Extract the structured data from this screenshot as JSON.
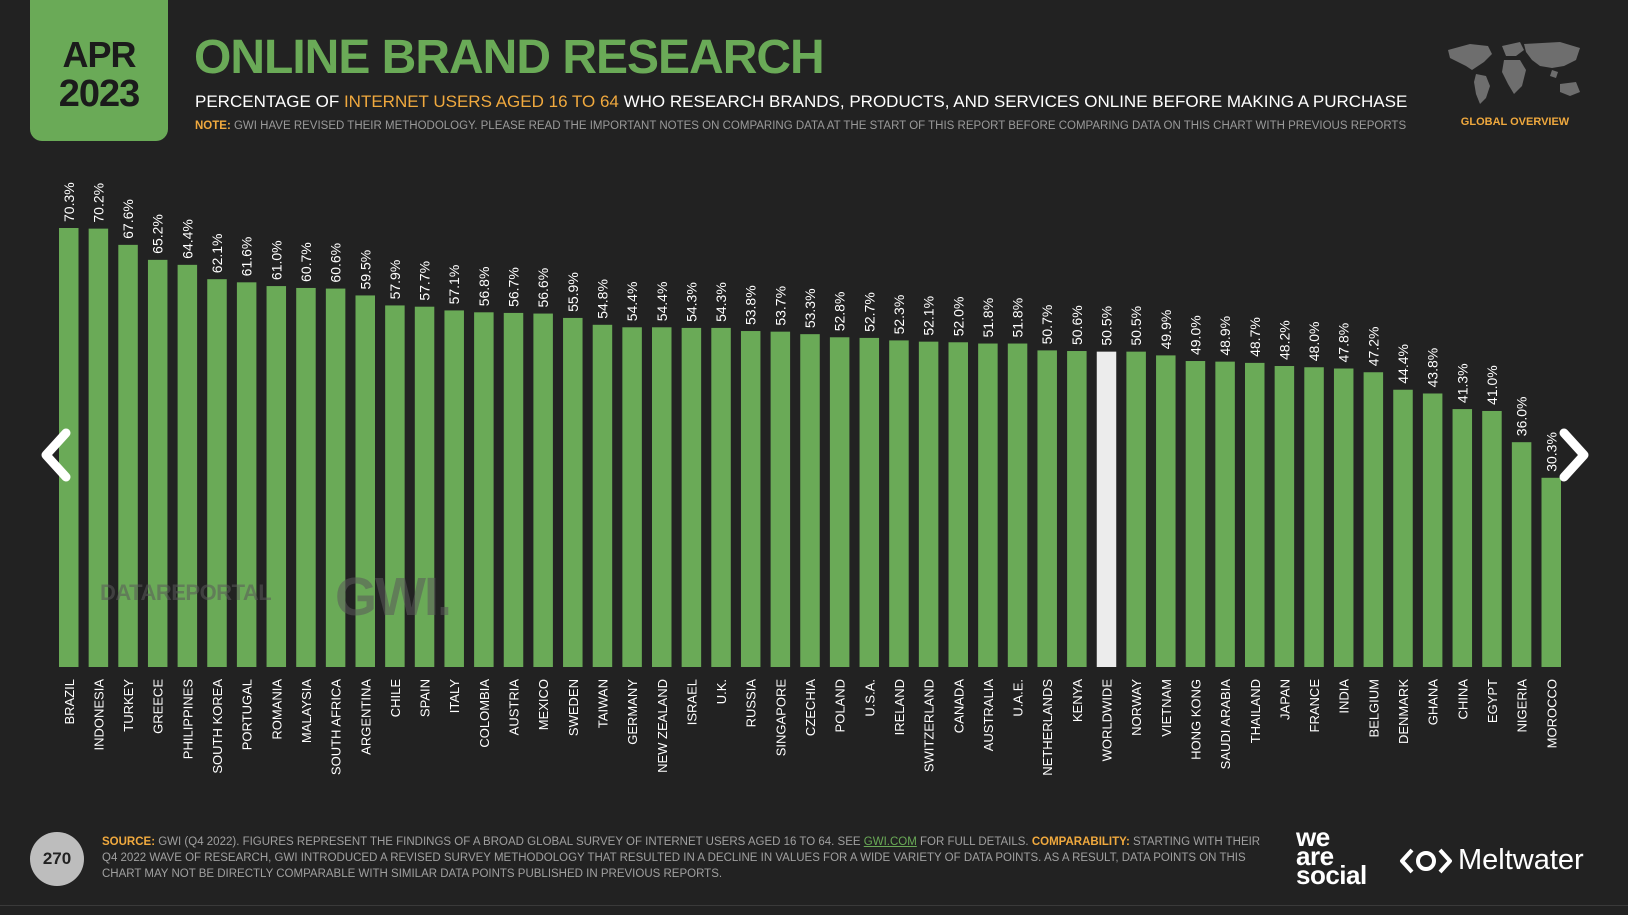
{
  "badge": {
    "month": "APR",
    "year": "2023"
  },
  "header": {
    "title": "ONLINE BRAND RESEARCH",
    "subtitle_pre": "PERCENTAGE OF ",
    "subtitle_highlight": "INTERNET USERS AGED 16 TO 64",
    "subtitle_post": " WHO RESEARCH BRANDS, PRODUCTS, AND SERVICES ONLINE BEFORE MAKING A PURCHASE",
    "note_label": "NOTE:",
    "note_text": " GWI HAVE REVISED THEIR METHODOLOGY. PLEASE READ THE IMPORTANT NOTES ON COMPARING DATA AT THE START OF THIS REPORT BEFORE COMPARING DATA ON THIS CHART WITH PREVIOUS REPORTS"
  },
  "global_overview": {
    "label": "GLOBAL OVERVIEW",
    "icon": "world-map-icon"
  },
  "nav": {
    "prev_icon": "chevron-left-icon",
    "next_icon": "chevron-right-icon"
  },
  "watermarks": {
    "datareportal": "DATAREPORTAL",
    "gwi": "GWI."
  },
  "footer": {
    "page_number": "270",
    "source_label": "SOURCE:",
    "source_text_1": " GWI (Q4 2022). FIGURES REPRESENT THE FINDINGS OF A BROAD GLOBAL SURVEY OF INTERNET USERS AGED 16 TO 64. SEE ",
    "source_link": "GWI.COM",
    "source_text_2": " FOR FULL DETAILS. ",
    "comparability_label": "COMPARABILITY:",
    "comparability_text": " STARTING WITH THEIR Q4 2022 WAVE OF RESEARCH, GWI INTRODUCED A REVISED SURVEY METHODOLOGY THAT RESULTED IN A DECLINE IN VALUES FOR A WIDE VARIETY OF DATA POINTS. AS A RESULT, DATA POINTS ON THIS CHART MAY NOT BE DIRECTLY COMPARABLE WITH SIMILAR DATA POINTS PUBLISHED IN PREVIOUS REPORTS.",
    "logo_wearesocial": [
      "we",
      "are",
      "social"
    ],
    "logo_meltwater": "Meltwater"
  },
  "colors": {
    "bar": "#6aaa57",
    "highlight_bar": "#ececec",
    "accent": "#f0a93e",
    "background": "#222222"
  },
  "chart_data": {
    "type": "bar",
    "title": "ONLINE BRAND RESEARCH",
    "ylim": [
      0,
      72
    ],
    "unit": "%",
    "highlight": "WORLDWIDE",
    "categories": [
      "BRAZIL",
      "INDONESIA",
      "TURKEY",
      "GREECE",
      "PHILIPPINES",
      "SOUTH KOREA",
      "PORTUGAL",
      "ROMANIA",
      "MALAYSIA",
      "SOUTH AFRICA",
      "ARGENTINA",
      "CHILE",
      "SPAIN",
      "ITALY",
      "COLOMBIA",
      "AUSTRIA",
      "MEXICO",
      "SWEDEN",
      "TAIWAN",
      "GERMANY",
      "NEW ZEALAND",
      "ISRAEL",
      "U.K.",
      "RUSSIA",
      "SINGAPORE",
      "CZECHIA",
      "POLAND",
      "U.S.A.",
      "IRELAND",
      "SWITZERLAND",
      "CANADA",
      "AUSTRALIA",
      "U.A.E.",
      "NETHERLANDS",
      "KENYA",
      "WORLDWIDE",
      "NORWAY",
      "VIETNAM",
      "HONG KONG",
      "SAUDI ARABIA",
      "THAILAND",
      "JAPAN",
      "FRANCE",
      "INDIA",
      "BELGIUM",
      "DENMARK",
      "GHANA",
      "CHINA",
      "EGYPT",
      "NIGERIA",
      "MOROCCO"
    ],
    "values": [
      70.3,
      70.2,
      67.6,
      65.2,
      64.4,
      62.1,
      61.6,
      61.0,
      60.7,
      60.6,
      59.5,
      57.9,
      57.7,
      57.1,
      56.8,
      56.7,
      56.6,
      55.9,
      54.8,
      54.4,
      54.4,
      54.3,
      54.3,
      53.8,
      53.7,
      53.3,
      52.8,
      52.7,
      52.3,
      52.1,
      52.0,
      51.8,
      51.8,
      50.7,
      50.6,
      50.5,
      50.5,
      49.9,
      49.0,
      48.9,
      48.7,
      48.2,
      48.0,
      47.8,
      47.2,
      44.4,
      43.8,
      41.3,
      41.0,
      36.0,
      30.3
    ],
    "labels": [
      "70.3%",
      "70.2%",
      "67.6%",
      "65.2%",
      "64.4%",
      "62.1%",
      "61.6%",
      "61.0%",
      "60.7%",
      "60.6%",
      "59.5%",
      "57.9%",
      "57.7%",
      "57.1%",
      "56.8%",
      "56.7%",
      "56.6%",
      "55.9%",
      "54.8%",
      "54.4%",
      "54.4%",
      "54.3%",
      "54.3%",
      "53.8%",
      "53.7%",
      "53.3%",
      "52.8%",
      "52.7%",
      "52.3%",
      "52.1%",
      "52.0%",
      "51.8%",
      "51.8%",
      "50.7%",
      "50.6%",
      "50.5%",
      "50.5%",
      "49.9%",
      "49.0%",
      "48.9%",
      "48.7%",
      "48.2%",
      "48.0%",
      "47.8%",
      "47.2%",
      "44.4%",
      "43.8%",
      "41.3%",
      "41.0%",
      "36.0%",
      "30.3%"
    ]
  }
}
